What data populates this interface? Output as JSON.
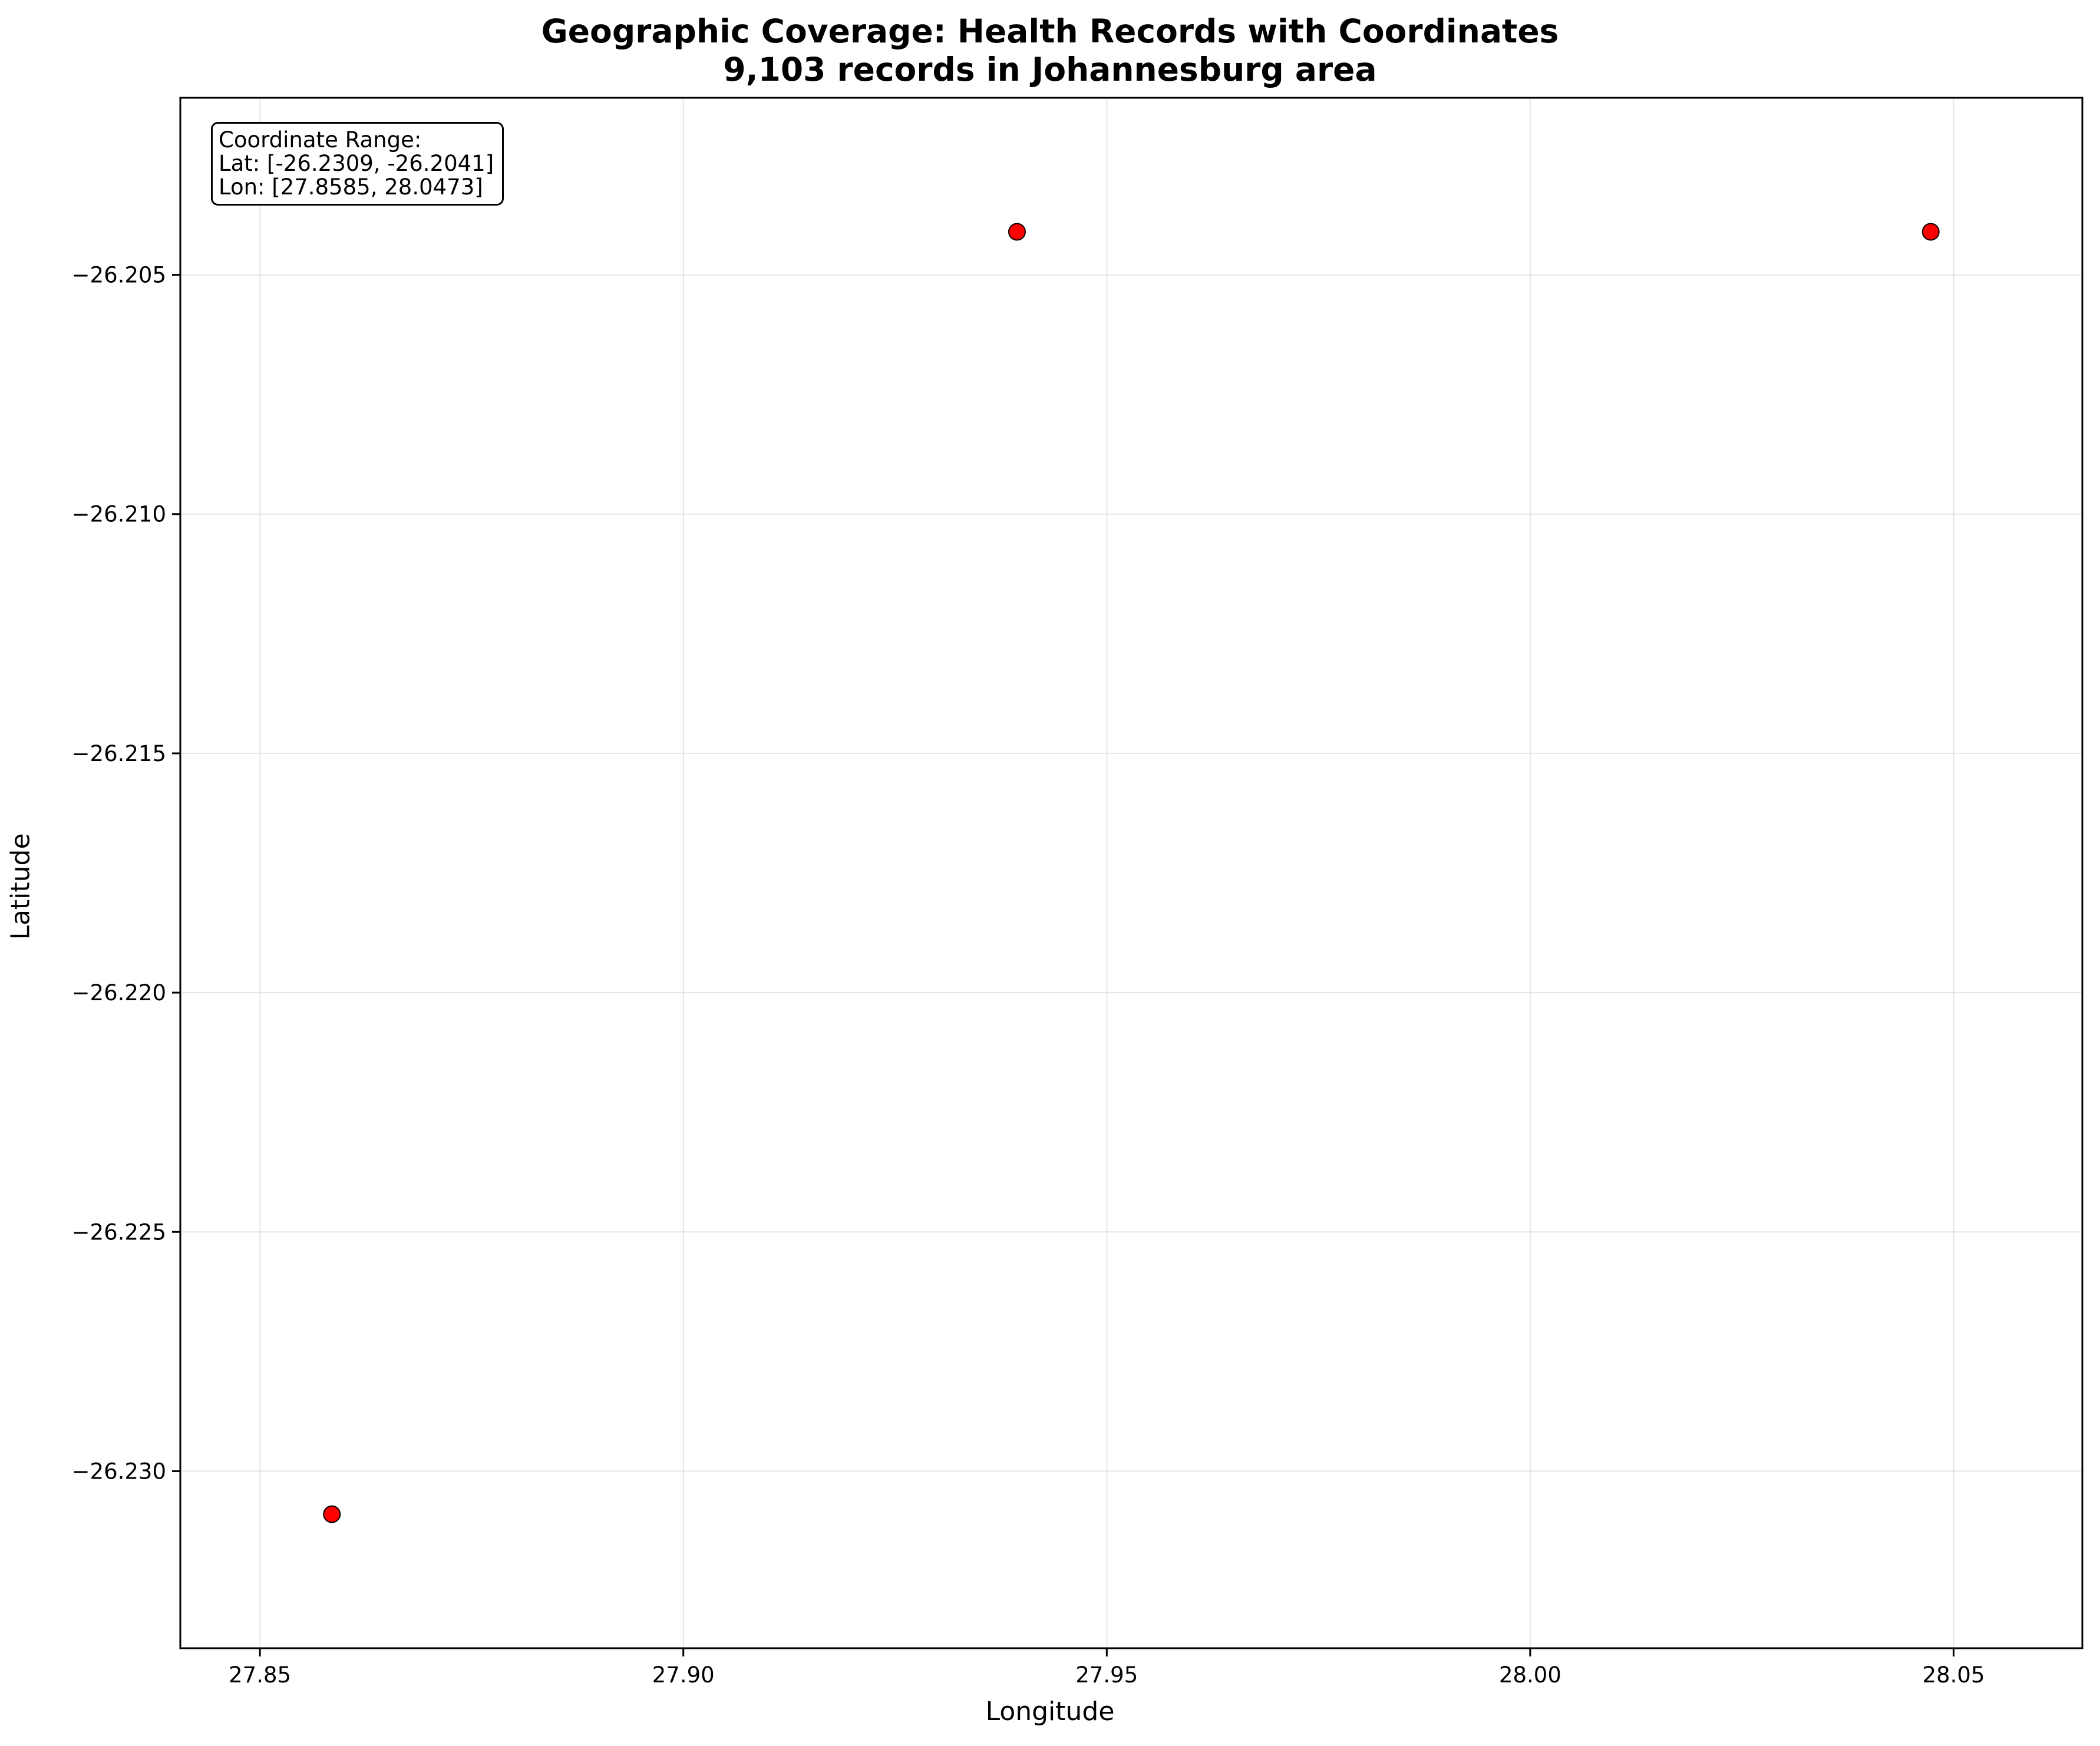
{
  "chart_data": {
    "type": "scatter",
    "title_lines": [
      "Geographic Coverage: Health Records with Coordinates",
      "9,103 records in Johannesburg area"
    ],
    "xlabel": "Longitude",
    "ylabel": "Latitude",
    "xlim": [
      27.8406,
      28.0652
    ],
    "ylim": [
      -26.2337,
      -26.2013
    ],
    "x_ticks": [
      27.85,
      27.9,
      27.95,
      28.0,
      28.05
    ],
    "x_tick_labels": [
      "27.85",
      "27.90",
      "27.95",
      "28.00",
      "28.05"
    ],
    "y_ticks": [
      -26.205,
      -26.21,
      -26.215,
      -26.22,
      -26.225,
      -26.23
    ],
    "y_tick_labels": [
      "−26.205",
      "−26.210",
      "−26.215",
      "−26.220",
      "−26.225",
      "−26.230"
    ],
    "grid": true,
    "marker_color": "#ff0000",
    "marker_edge_color": "#000000",
    "points": [
      {
        "lon": 27.8585,
        "lat": -26.2309
      },
      {
        "lon": 27.9394,
        "lat": -26.2041
      },
      {
        "lon": 28.0473,
        "lat": -26.2041
      }
    ],
    "annotation": {
      "lines": [
        "Coordinate Range:",
        "Lat: [-26.2309, -26.2041]",
        "Lon: [27.8585, 28.0473]"
      ],
      "placement": "top-left"
    }
  }
}
